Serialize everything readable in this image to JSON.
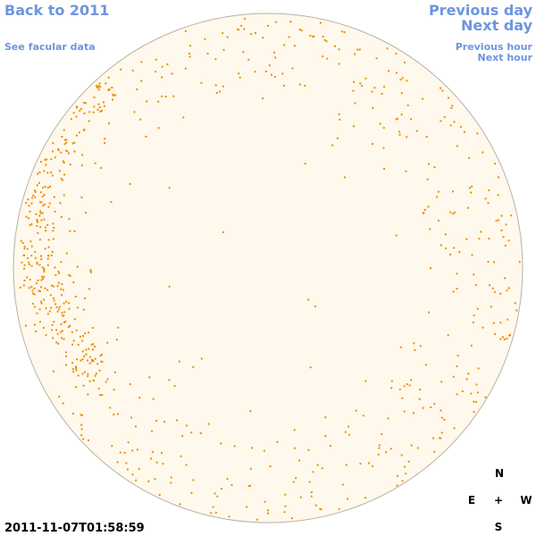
{
  "nav": {
    "back_year": "Back to 2011",
    "facular_link": "See facular data",
    "previous_day": "Previous day",
    "next_day": "Next day",
    "previous_hour": "Previous hour",
    "next_hour": "Next hour"
  },
  "timestamp": "2011-11-07T01:58:59",
  "compass": {
    "north": "N",
    "east": "E",
    "center": "+",
    "west": "W",
    "south": "S"
  }
}
